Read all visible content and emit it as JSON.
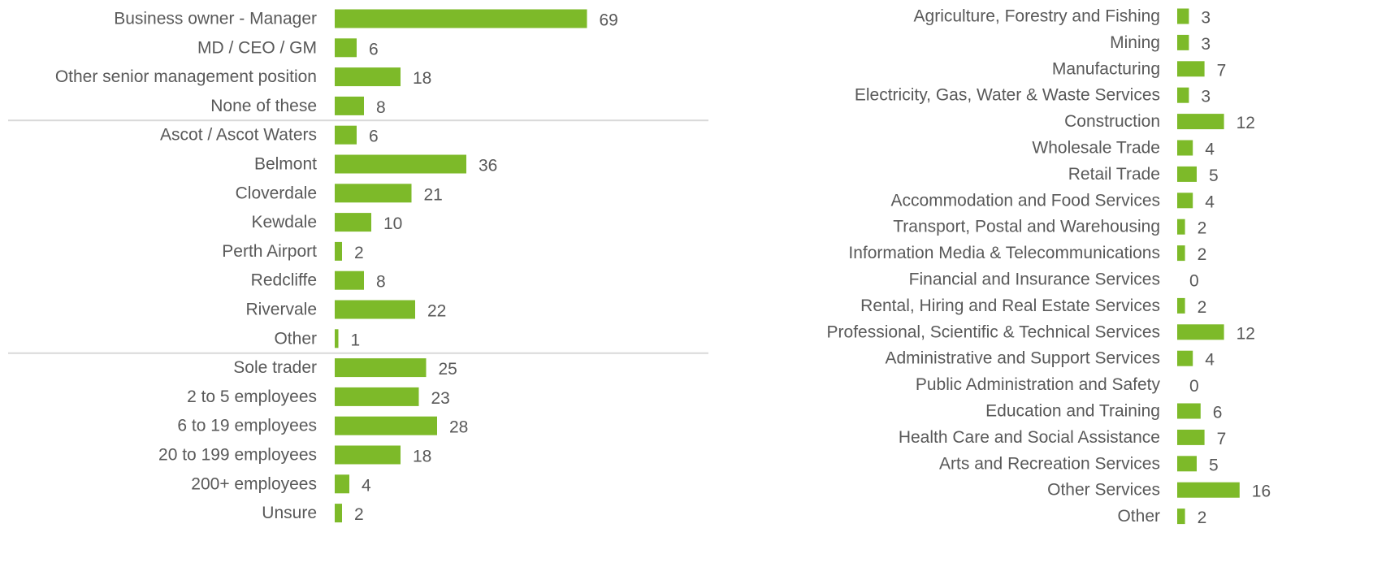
{
  "colors": {
    "bar": "#7DBA29",
    "text": "#595959",
    "divider": "#D9D9D9"
  },
  "chart_data": [
    {
      "type": "bar",
      "orientation": "horizontal",
      "categories": [
        "Business owner - Manager",
        "MD / CEO / GM",
        "Other senior management position",
        "None of these",
        "Ascot / Ascot Waters",
        "Belmont",
        "Cloverdale",
        "Kewdale",
        "Perth Airport",
        "Redcliffe",
        "Rivervale",
        "Other",
        "Sole trader",
        "2 to 5 employees",
        "6 to 19 employees",
        "20 to 199 employees",
        "200+ employees",
        "Unsure"
      ],
      "values": [
        69,
        6,
        18,
        8,
        6,
        36,
        21,
        10,
        2,
        8,
        22,
        1,
        25,
        23,
        28,
        18,
        4,
        2
      ],
      "groups": [
        {
          "name": "",
          "start": 0,
          "end": 3
        },
        {
          "name": "",
          "start": 4,
          "end": 11
        },
        {
          "name": "",
          "start": 12,
          "end": 17
        }
      ],
      "data_labels": true,
      "grid": false,
      "title": "",
      "xlabel": "",
      "ylabel": ""
    },
    {
      "type": "bar",
      "orientation": "horizontal",
      "categories": [
        "Agriculture, Forestry and Fishing",
        "Mining",
        "Manufacturing",
        "Electricity, Gas, Water & Waste Services",
        "Construction",
        "Wholesale Trade",
        "Retail Trade",
        "Accommodation and Food Services",
        "Transport, Postal and Warehousing",
        "Information Media & Telecommunications",
        "Financial and Insurance Services",
        "Rental, Hiring and Real Estate Services",
        "Professional, Scientific & Technical Services",
        "Administrative and Support Services",
        "Public Administration and Safety",
        "Education and Training",
        "Health Care and Social Assistance",
        "Arts and Recreation Services",
        "Other Services",
        "Other"
      ],
      "values": [
        3,
        3,
        7,
        3,
        12,
        4,
        5,
        4,
        2,
        2,
        0,
        2,
        12,
        4,
        0,
        6,
        7,
        5,
        16,
        2
      ],
      "data_labels": true,
      "grid": false,
      "title": "",
      "xlabel": "",
      "ylabel": ""
    }
  ]
}
